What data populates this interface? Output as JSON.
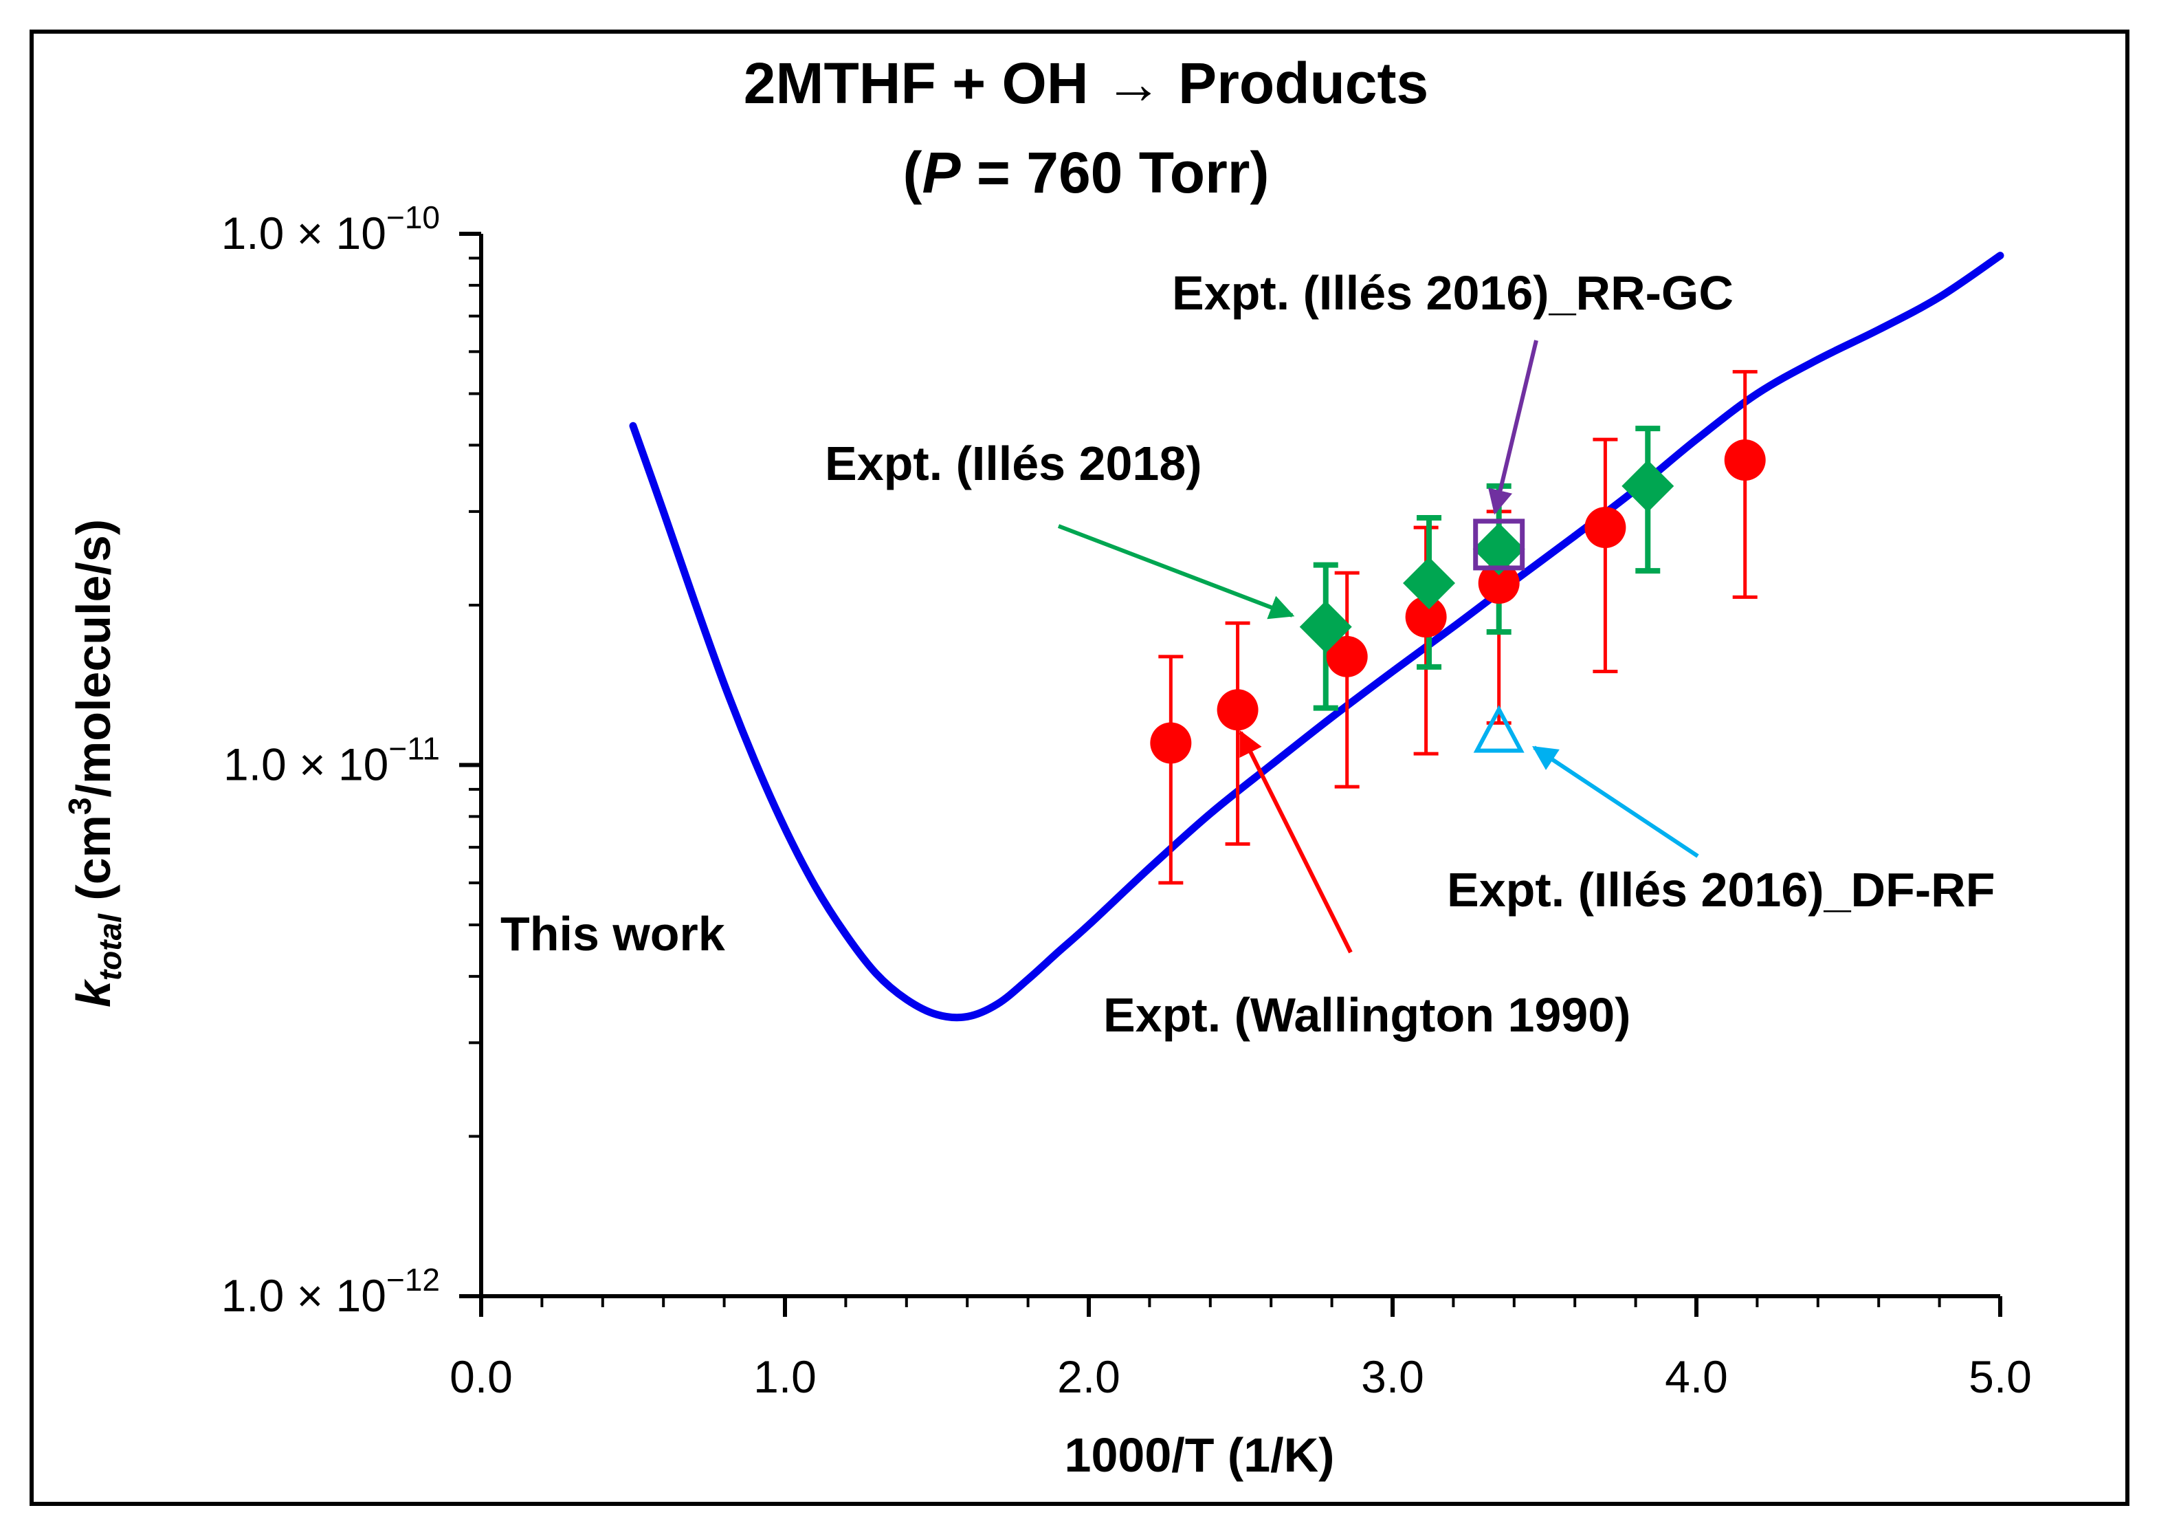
{
  "chart_data": {
    "type": "scatter",
    "title_line1": "2MTHF + OH → Products",
    "title_line2_open": "(",
    "title_line2_p": "P",
    "title_line2_rest": " = 760 Torr)",
    "xlabel": "1000/T (1/K)",
    "ylabel_k": "k",
    "ylabel_sub": "total",
    "ylabel_units": " (cm",
    "ylabel_sup": "3",
    "ylabel_end": "/molecule/s)",
    "x_range": [
      0.0,
      5.0
    ],
    "y_range_log10": [
      -12,
      -10
    ],
    "x_ticks": [
      {
        "value": 0.0,
        "label": "0.0"
      },
      {
        "value": 1.0,
        "label": "1.0"
      },
      {
        "value": 2.0,
        "label": "2.0"
      },
      {
        "value": 3.0,
        "label": "3.0"
      },
      {
        "value": 4.0,
        "label": "4.0"
      },
      {
        "value": 5.0,
        "label": "5.0"
      }
    ],
    "y_ticks": [
      {
        "exp": -10,
        "mantissa": "1.0 × 10",
        "power": "−10"
      },
      {
        "exp": -11,
        "mantissa": "1.0 × 10",
        "power": "−11"
      },
      {
        "exp": -12,
        "mantissa": "1.0 × 10",
        "power": "−12"
      }
    ],
    "colors": {
      "this_work": "#0000ee",
      "wallington": "#ff0000",
      "illes2018": "#00a651",
      "rr_gc": "#7030a0",
      "df_rf": "#00b0f0"
    },
    "series": [
      {
        "name": "This work",
        "style": "line",
        "points": [
          [
            0.5,
            4.35e-11
          ],
          [
            0.6,
            3e-11
          ],
          [
            0.7,
            2.05e-11
          ],
          [
            0.8,
            1.42e-11
          ],
          [
            0.9,
            1.02e-11
          ],
          [
            1.0,
            7.6e-12
          ],
          [
            1.1,
            5.9e-12
          ],
          [
            1.2,
            4.8e-12
          ],
          [
            1.3,
            4.05e-12
          ],
          [
            1.4,
            3.62e-12
          ],
          [
            1.5,
            3.39e-12
          ],
          [
            1.6,
            3.36e-12
          ],
          [
            1.7,
            3.55e-12
          ],
          [
            1.8,
            3.95e-12
          ],
          [
            1.9,
            4.45e-12
          ],
          [
            2.0,
            5e-12
          ],
          [
            2.2,
            6.4e-12
          ],
          [
            2.4,
            8.1e-12
          ],
          [
            2.6,
            1e-11
          ],
          [
            2.8,
            1.23e-11
          ],
          [
            3.0,
            1.5e-11
          ],
          [
            3.2,
            1.82e-11
          ],
          [
            3.4,
            2.22e-11
          ],
          [
            3.6,
            2.7e-11
          ],
          [
            3.8,
            3.3e-11
          ],
          [
            4.0,
            4.1e-11
          ],
          [
            4.2,
            5e-11
          ],
          [
            4.4,
            5.8e-11
          ],
          [
            4.6,
            6.6e-11
          ],
          [
            4.8,
            7.6e-11
          ],
          [
            5.0,
            9.1e-11
          ]
        ]
      },
      {
        "name": "Expt. (Wallington 1990)",
        "style": "circle",
        "points": [
          {
            "x": 2.27,
            "y": 1.1e-11,
            "lo": 6e-12,
            "hi": 1.6e-11
          },
          {
            "x": 2.49,
            "y": 1.27e-11,
            "lo": 7.1e-12,
            "hi": 1.85e-11
          },
          {
            "x": 2.85,
            "y": 1.6e-11,
            "lo": 9.1e-12,
            "hi": 2.3e-11
          },
          {
            "x": 3.11,
            "y": 1.9e-11,
            "lo": 1.05e-11,
            "hi": 2.8e-11
          },
          {
            "x": 3.35,
            "y": 2.2e-11,
            "lo": 1.2e-11,
            "hi": 3e-11
          },
          {
            "x": 3.7,
            "y": 2.8e-11,
            "lo": 1.5e-11,
            "hi": 4.1e-11
          },
          {
            "x": 4.16,
            "y": 3.75e-11,
            "lo": 2.07e-11,
            "hi": 5.5e-11
          }
        ]
      },
      {
        "name": "Expt. (Illés 2018)",
        "style": "diamond",
        "points": [
          {
            "x": 2.78,
            "y": 1.82e-11,
            "lo": 1.28e-11,
            "hi": 2.38e-11
          },
          {
            "x": 3.12,
            "y": 2.2e-11,
            "lo": 1.53e-11,
            "hi": 2.92e-11
          },
          {
            "x": 3.35,
            "y": 2.55e-11,
            "lo": 1.78e-11,
            "hi": 3.35e-11
          },
          {
            "x": 3.84,
            "y": 3.35e-11,
            "lo": 2.32e-11,
            "hi": 4.3e-11
          }
        ]
      },
      {
        "name": "Expt. (Illés 2016)_RR-GC",
        "style": "square",
        "points": [
          {
            "x": 3.35,
            "y": 2.6e-11
          }
        ]
      },
      {
        "name": "Expt. (Illés 2016)_DF-RF",
        "style": "triangle",
        "points": [
          {
            "x": 3.35,
            "y": 1.15e-11
          }
        ]
      }
    ],
    "annotations": [
      {
        "text": "This work"
      },
      {
        "text": "Expt. (Wallington 1990)"
      },
      {
        "text": "Expt. (Illés 2018)"
      },
      {
        "text": "Expt. (Illés 2016)_RR-GC"
      },
      {
        "text": "Expt. (Illés 2016)_DF-RF"
      }
    ],
    "grid": false,
    "legend": "none (inline annotations)"
  }
}
